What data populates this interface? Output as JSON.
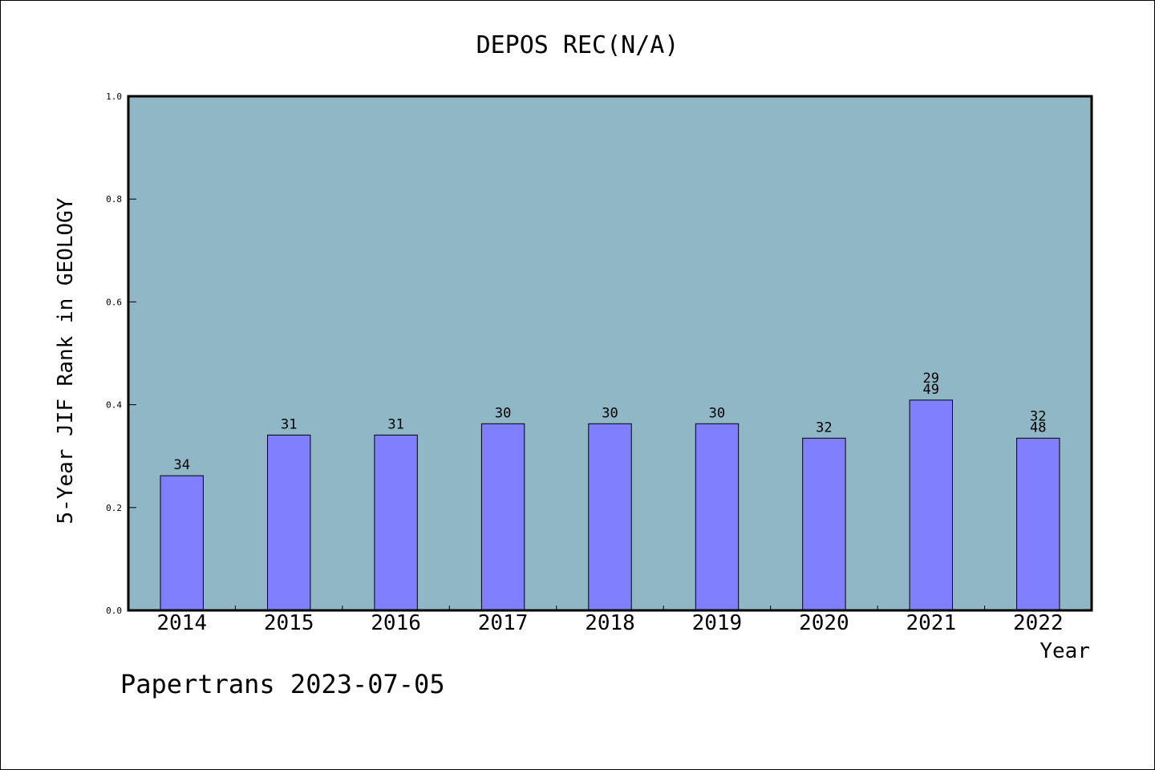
{
  "chart_data": {
    "type": "bar",
    "title": "DEPOS REC(N/A)",
    "xlabel": "Year",
    "ylabel": "5-Year JIF Rank in GEOLOGY",
    "ylim": [
      0,
      1.0
    ],
    "yticks": [
      "0.0",
      "0.2",
      "0.4",
      "0.6",
      "0.8",
      "1.0"
    ],
    "categories": [
      "2014",
      "2015",
      "2016",
      "2017",
      "2018",
      "2019",
      "2020",
      "2021",
      "2022"
    ],
    "values": [
      0.262,
      0.341,
      0.341,
      0.363,
      0.363,
      0.363,
      0.335,
      0.409,
      0.335
    ],
    "bar_labels": [
      [
        "34"
      ],
      [
        "31"
      ],
      [
        "31"
      ],
      [
        "30"
      ],
      [
        "30"
      ],
      [
        "30"
      ],
      [
        "32"
      ],
      [
        "29",
        "49"
      ],
      [
        "32",
        "48"
      ]
    ],
    "grid": false,
    "colors": {
      "plot_background": "#8fb7c5",
      "bar_fill": "#8080ff",
      "bar_edge": "#000000"
    }
  },
  "footer": "Papertrans 2023-07-05"
}
